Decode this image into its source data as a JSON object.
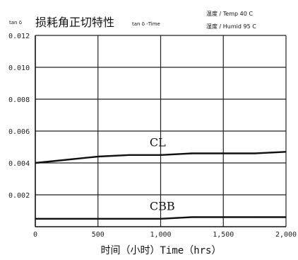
{
  "chart_data": {
    "type": "line",
    "title_prefix": "tan δ",
    "title": "损耗角正切特性",
    "title_suffix": "tan δ -Time",
    "conditions": [
      "温度 / Temp 40 C",
      "湿度 / Humid 95 C"
    ],
    "xlabel": "时间（小时）Time（hrs）",
    "ylabel": "",
    "xlim": [
      0,
      2000
    ],
    "ylim": [
      0,
      0.012
    ],
    "x_ticks": [
      0,
      500,
      1000,
      1500,
      2000
    ],
    "x_tick_labels": [
      "0",
      "500",
      "1,000",
      "1,500",
      "2,000"
    ],
    "y_ticks": [
      0.002,
      0.004,
      0.006,
      0.008,
      0.01,
      0.012
    ],
    "y_tick_labels": [
      "0.002",
      "0.004",
      "0.006",
      "0.008",
      "0.010",
      "0.012"
    ],
    "grid": true,
    "series": [
      {
        "name": "CL",
        "x": [
          0,
          250,
          500,
          750,
          1000,
          1250,
          1500,
          1750,
          2000
        ],
        "y": [
          0.004,
          0.0042,
          0.0044,
          0.0045,
          0.0045,
          0.0046,
          0.0046,
          0.0046,
          0.0047
        ]
      },
      {
        "name": "CBB",
        "x": [
          0,
          250,
          500,
          750,
          1000,
          1250,
          1500,
          1750,
          2000
        ],
        "y": [
          0.0005,
          0.0005,
          0.0005,
          0.0005,
          0.0005,
          0.0006,
          0.0006,
          0.0006,
          0.0006
        ]
      }
    ]
  }
}
